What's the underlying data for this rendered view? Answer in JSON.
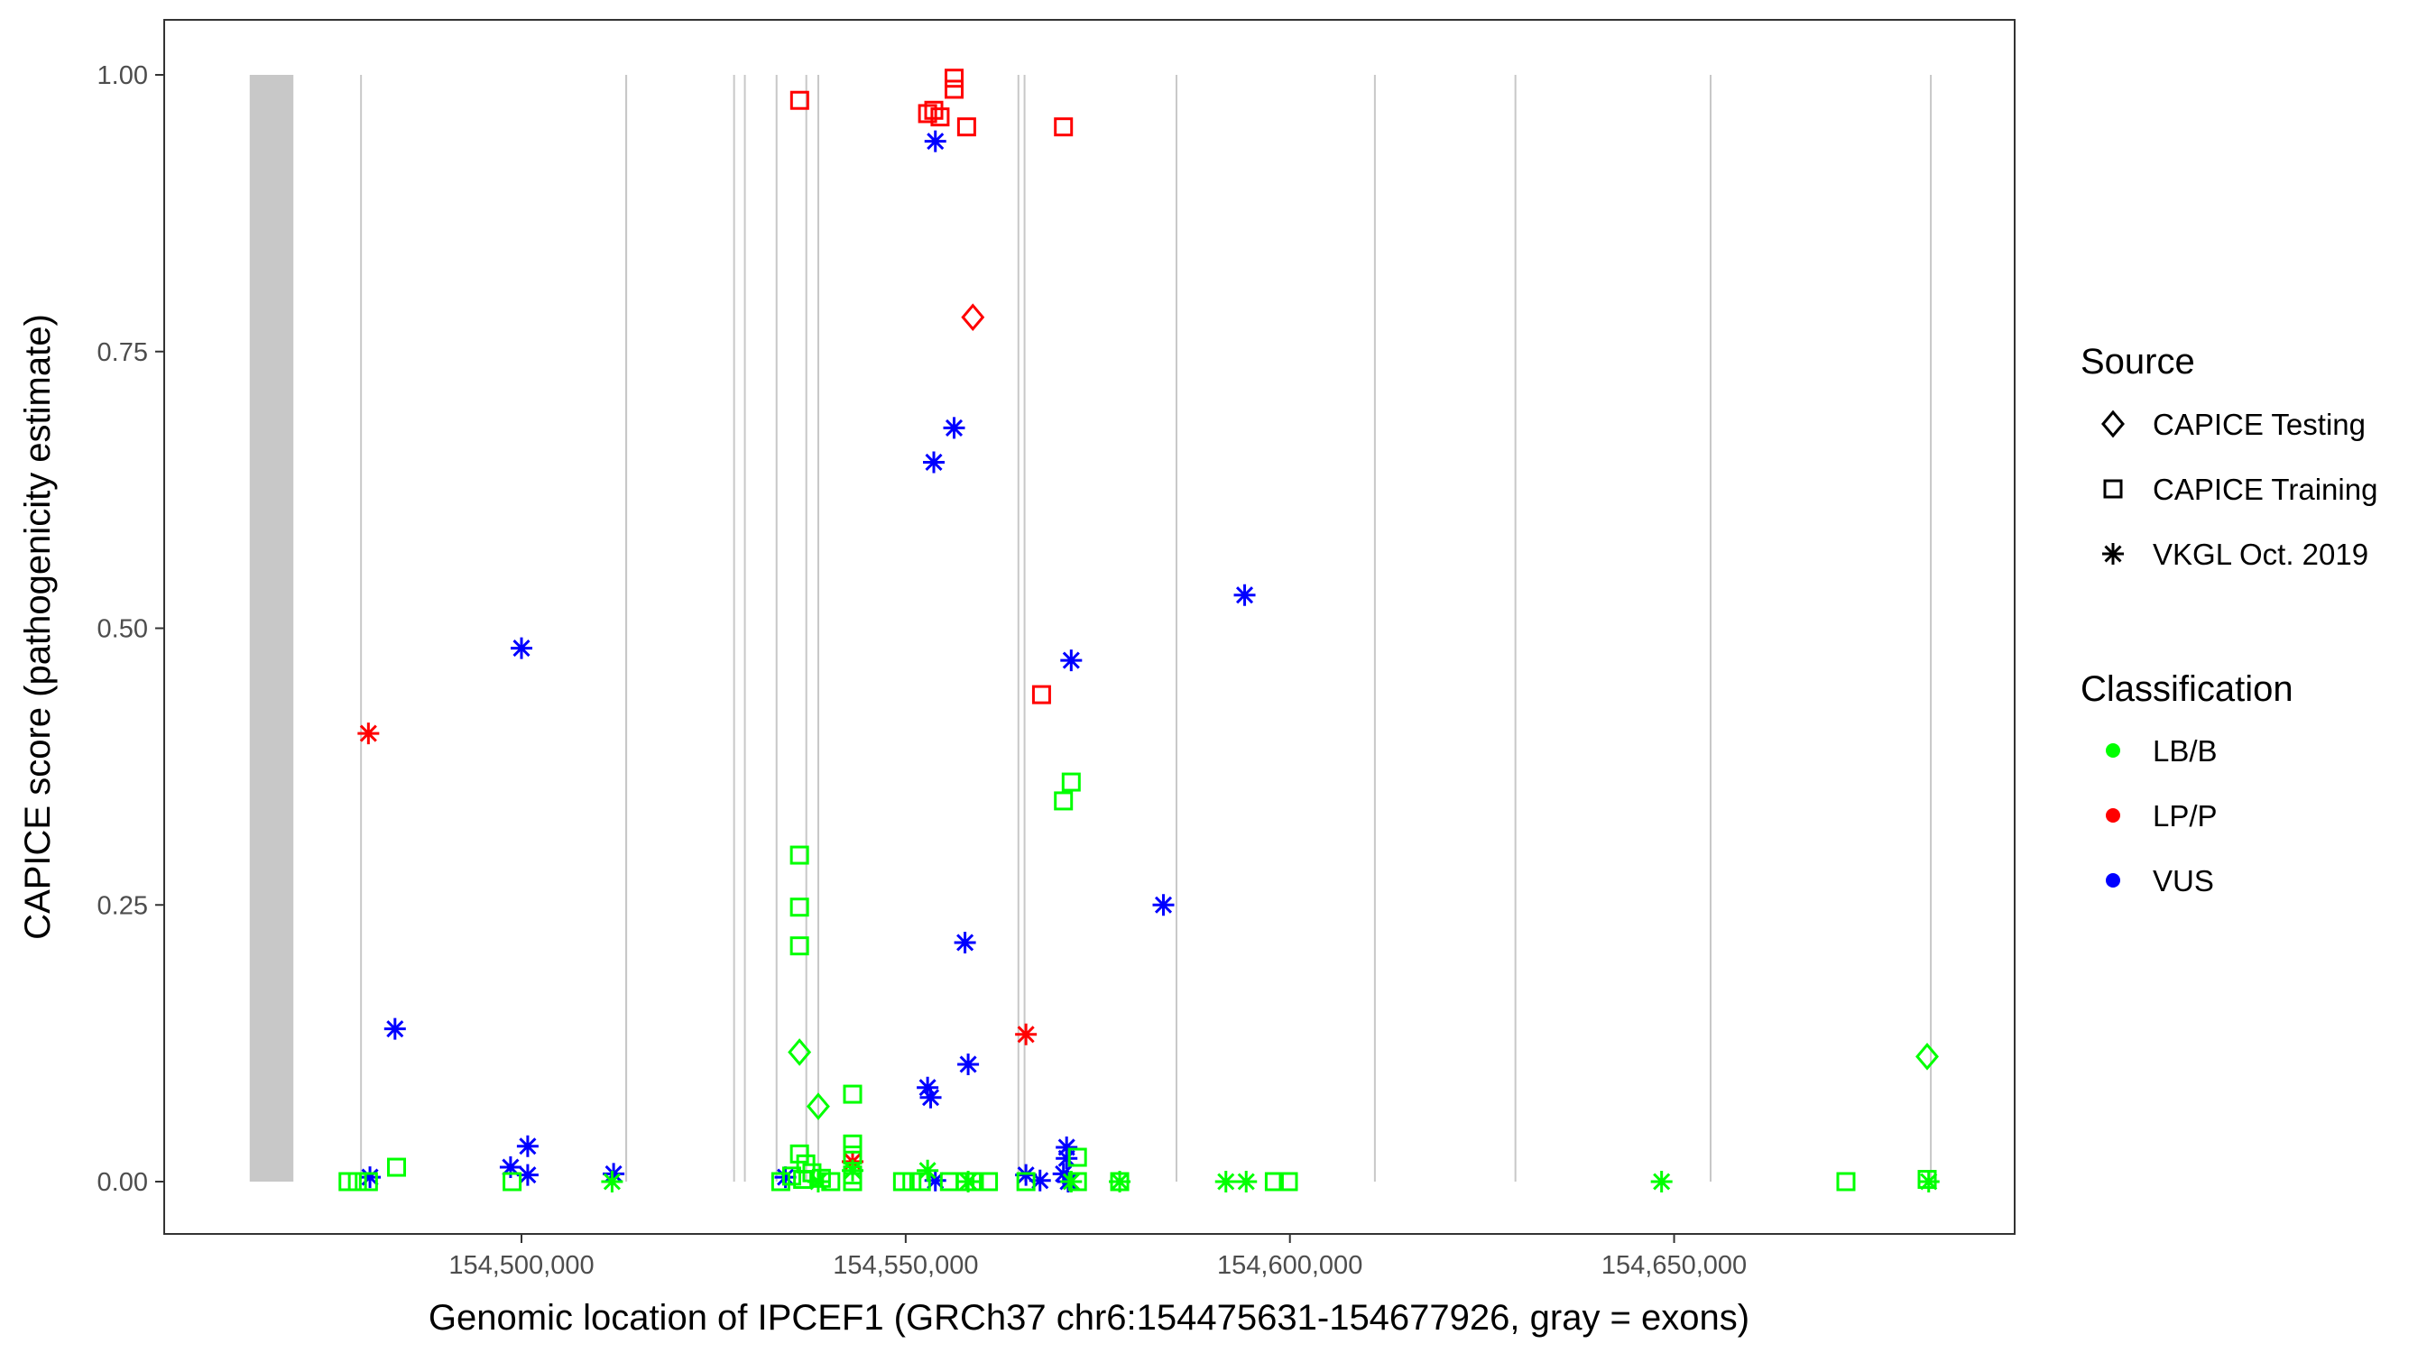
{
  "chart_data": {
    "type": "scatter",
    "xlabel": "Genomic location of IPCEF1 (GRCh37 chr6:154475631-154677926, gray = exons)",
    "ylabel": "CAPICE score (pathogenicity estimate)",
    "xlim": [
      154453450,
      154694300
    ],
    "ylim": [
      -0.045,
      1.05
    ],
    "xticks": [
      154500000,
      154550000,
      154600000,
      154650000
    ],
    "xtick_labels": [
      "154,500,000",
      "154,550,000",
      "154,600,000",
      "154,650,000"
    ],
    "yticks": [
      0,
      0.25,
      0.5,
      0.75,
      1.0
    ],
    "ytick_labels": [
      "0.00",
      "0.25",
      "0.50",
      "0.75",
      "1.00"
    ],
    "grid": false,
    "exons": [
      [
        154464630,
        154470320
      ],
      [
        154479000,
        154479150
      ],
      [
        154513500,
        154513750
      ],
      [
        154527550,
        154527750
      ],
      [
        154528950,
        154529150
      ],
      [
        154533080,
        154533180
      ],
      [
        154536950,
        154537050
      ],
      [
        154538500,
        154538750
      ],
      [
        154564550,
        154564750
      ],
      [
        154565350,
        154565550
      ],
      [
        154585120,
        154585200
      ],
      [
        154610940,
        154611020
      ],
      [
        154629230,
        154629310
      ],
      [
        154654630,
        154654710
      ],
      [
        154683290,
        154683370
      ]
    ],
    "legend": {
      "placement": "right",
      "source_title": "Source",
      "source_items": [
        {
          "label": "CAPICE Testing",
          "shape": "diamond"
        },
        {
          "label": "CAPICE Training",
          "shape": "square"
        },
        {
          "label": "VKGL Oct. 2019",
          "shape": "star"
        }
      ],
      "class_title": "Classification",
      "class_items": [
        {
          "label": "LB/B",
          "color": "#00ff00"
        },
        {
          "label": "LP/P",
          "color": "#ff0000"
        },
        {
          "label": "VUS",
          "color": "#0000ff"
        }
      ]
    },
    "series_fields": [
      "x",
      "y",
      "shape",
      "class"
    ],
    "points": [
      [
        154536200,
        0.977,
        "square",
        "LP/P"
      ],
      [
        154552850,
        0.965,
        "square",
        "LP/P"
      ],
      [
        154553660,
        0.968,
        "square",
        "LP/P"
      ],
      [
        154554470,
        0.962,
        "square",
        "LP/P"
      ],
      [
        154556300,
        0.997,
        "square",
        "LP/P"
      ],
      [
        154556300,
        0.987,
        "square",
        "LP/P"
      ],
      [
        154557930,
        0.953,
        "square",
        "LP/P"
      ],
      [
        154570530,
        0.953,
        "square",
        "LP/P"
      ],
      [
        154567680,
        0.44,
        "square",
        "LP/P"
      ],
      [
        154558740,
        0.781,
        "diamond",
        "LP/P"
      ],
      [
        154480080,
        0.405,
        "star",
        "LP/P"
      ],
      [
        154565650,
        0.133,
        "star",
        "LP/P"
      ],
      [
        154543090,
        0.018,
        "star",
        "LP/P"
      ],
      [
        154553860,
        0.94,
        "star",
        "VUS"
      ],
      [
        154556300,
        0.681,
        "star",
        "VUS"
      ],
      [
        154553660,
        0.65,
        "star",
        "VUS"
      ],
      [
        154500000,
        0.482,
        "star",
        "VUS"
      ],
      [
        154594110,
        0.53,
        "star",
        "VUS"
      ],
      [
        154571540,
        0.471,
        "star",
        "VUS"
      ],
      [
        154583540,
        0.25,
        "star",
        "VUS"
      ],
      [
        154557720,
        0.216,
        "star",
        "VUS"
      ],
      [
        154483540,
        0.138,
        "star",
        "VUS"
      ],
      [
        154558130,
        0.106,
        "star",
        "VUS"
      ],
      [
        154552850,
        0.085,
        "star",
        "VUS"
      ],
      [
        154553250,
        0.076,
        "star",
        "VUS"
      ],
      [
        154500810,
        0.032,
        "star",
        "VUS"
      ],
      [
        154570940,
        0.031,
        "star",
        "VUS"
      ],
      [
        154570940,
        0.021,
        "star",
        "VUS"
      ],
      [
        154498580,
        0.013,
        "star",
        "VUS"
      ],
      [
        154480280,
        0.004,
        "star",
        "VUS"
      ],
      [
        154500810,
        0.006,
        "star",
        "VUS"
      ],
      [
        154511990,
        0.007,
        "star",
        "VUS"
      ],
      [
        154534350,
        0.004,
        "star",
        "VUS"
      ],
      [
        154553860,
        0.001,
        "star",
        "VUS"
      ],
      [
        154565650,
        0.006,
        "star",
        "VUS"
      ],
      [
        154567480,
        0.001,
        "star",
        "VUS"
      ],
      [
        154570530,
        0.007,
        "star",
        "VUS"
      ],
      [
        154571140,
        0.0,
        "star",
        "VUS"
      ],
      [
        154511790,
        0.0,
        "star",
        "LB/B"
      ],
      [
        154552850,
        0.01,
        "star",
        "LB/B"
      ],
      [
        154558130,
        0.0,
        "star",
        "LB/B"
      ],
      [
        154571540,
        0.0,
        "star",
        "LB/B"
      ],
      [
        154577850,
        0.0,
        "star",
        "LB/B"
      ],
      [
        154591670,
        0.0,
        "star",
        "LB/B"
      ],
      [
        154594310,
        0.0,
        "star",
        "LB/B"
      ],
      [
        154648370,
        0.0,
        "star",
        "LB/B"
      ],
      [
        154683130,
        0.0,
        "star",
        "LB/B"
      ],
      [
        154543090,
        0.01,
        "star",
        "LB/B"
      ],
      [
        154538620,
        0.0,
        "star",
        "LB/B"
      ],
      [
        154536180,
        0.295,
        "square",
        "LB/B"
      ],
      [
        154536180,
        0.248,
        "square",
        "LB/B"
      ],
      [
        154536180,
        0.213,
        "square",
        "LB/B"
      ],
      [
        154571540,
        0.361,
        "square",
        "LB/B"
      ],
      [
        154570530,
        0.344,
        "square",
        "LB/B"
      ],
      [
        154543090,
        0.079,
        "square",
        "LB/B"
      ],
      [
        154543090,
        0.034,
        "square",
        "LB/B"
      ],
      [
        154543090,
        0.024,
        "square",
        "LB/B"
      ],
      [
        154536180,
        0.025,
        "square",
        "LB/B"
      ],
      [
        154537000,
        0.016,
        "square",
        "LB/B"
      ],
      [
        154483740,
        0.013,
        "square",
        "LB/B"
      ],
      [
        154498780,
        0.0,
        "square",
        "LB/B"
      ],
      [
        154477430,
        0.0,
        "square",
        "LB/B"
      ],
      [
        154478650,
        0.0,
        "square",
        "LB/B"
      ],
      [
        154480080,
        0.0,
        "square",
        "LB/B"
      ],
      [
        154533740,
        0.0,
        "square",
        "LB/B"
      ],
      [
        154535160,
        0.005,
        "square",
        "LB/B"
      ],
      [
        154536590,
        0.002,
        "square",
        "LB/B"
      ],
      [
        154537800,
        0.008,
        "square",
        "LB/B"
      ],
      [
        154539030,
        0.003,
        "square",
        "LB/B"
      ],
      [
        154540250,
        0.0,
        "square",
        "LB/B"
      ],
      [
        154543090,
        0.0,
        "square",
        "LB/B"
      ],
      [
        154543090,
        0.006,
        "square",
        "LB/B"
      ],
      [
        154549590,
        0.0,
        "square",
        "LB/B"
      ],
      [
        154550810,
        0.0,
        "square",
        "LB/B"
      ],
      [
        154552040,
        0.0,
        "square",
        "LB/B"
      ],
      [
        154555690,
        0.0,
        "square",
        "LB/B"
      ],
      [
        154557720,
        0.0,
        "square",
        "LB/B"
      ],
      [
        154558940,
        0.0,
        "square",
        "LB/B"
      ],
      [
        154560770,
        0.0,
        "square",
        "LB/B"
      ],
      [
        154565650,
        0.0,
        "square",
        "LB/B"
      ],
      [
        154572350,
        0.022,
        "square",
        "LB/B"
      ],
      [
        154572350,
        0.0,
        "square",
        "LB/B"
      ],
      [
        154577850,
        0.0,
        "square",
        "LB/B"
      ],
      [
        154597970,
        0.0,
        "square",
        "LB/B"
      ],
      [
        154599800,
        0.0,
        "square",
        "LB/B"
      ],
      [
        154672360,
        0.0,
        "square",
        "LB/B"
      ],
      [
        154682930,
        0.002,
        "square",
        "LB/B"
      ],
      [
        154536180,
        0.117,
        "diamond",
        "LB/B"
      ],
      [
        154538620,
        0.068,
        "diamond",
        "LB/B"
      ],
      [
        154682930,
        0.113,
        "diamond",
        "LB/B"
      ]
    ]
  }
}
